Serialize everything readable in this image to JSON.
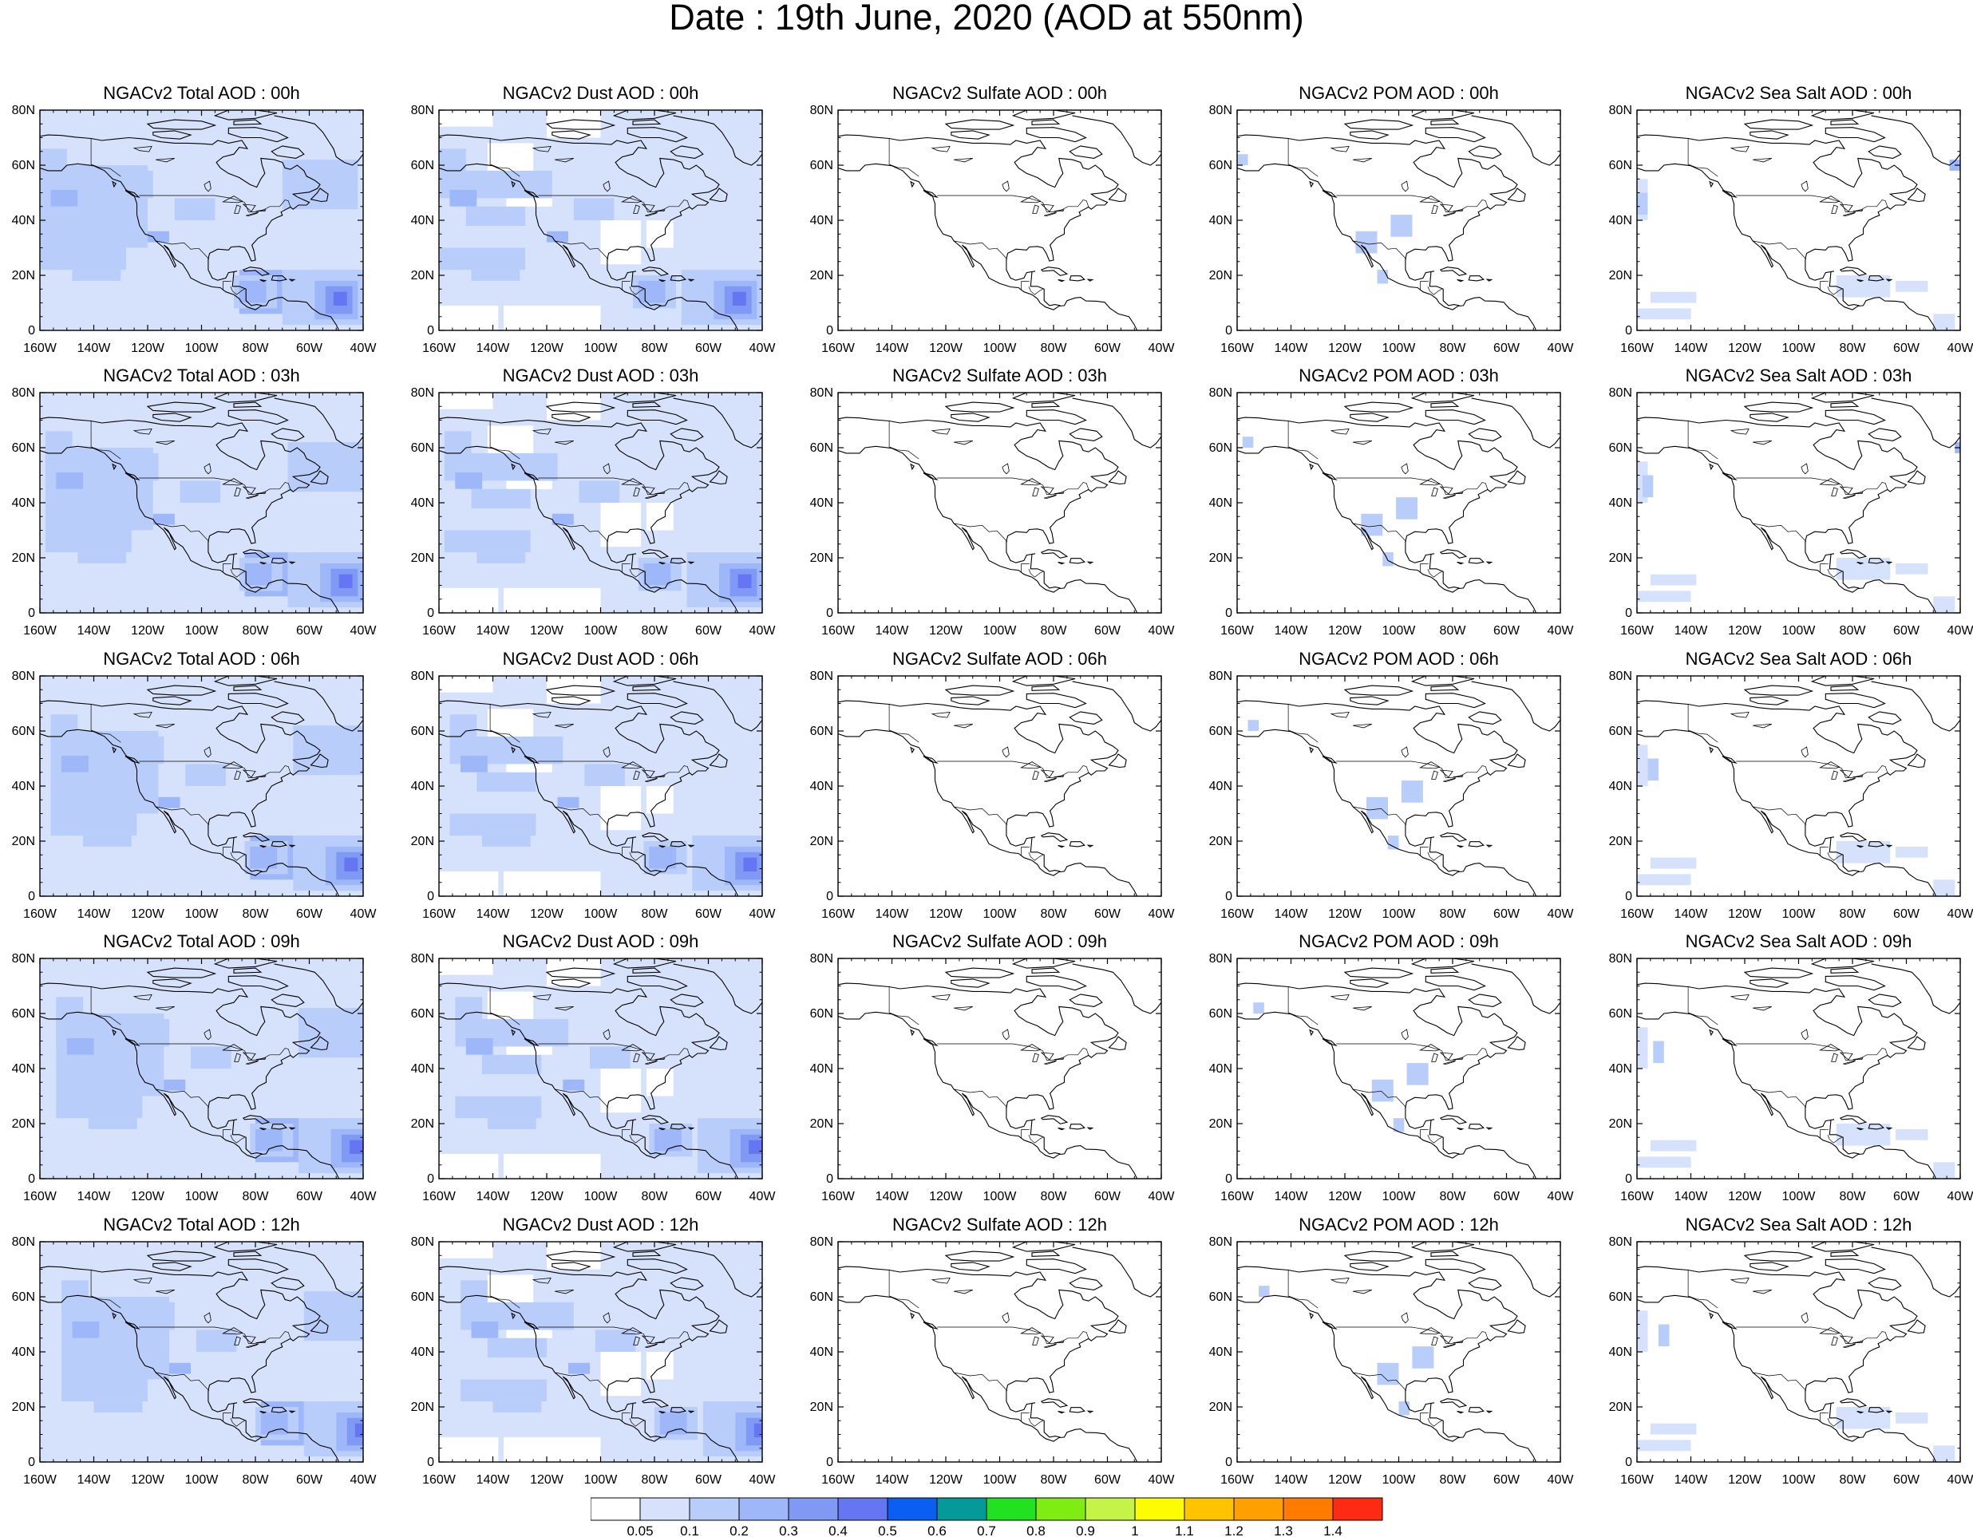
{
  "title": "Date : 19th June, 2020 (AOD at 550nm)",
  "panel_titles": [
    [
      "NGACv2 Total AOD : 00h",
      "NGACv2 Dust AOD : 00h",
      "NGACv2 Sulfate AOD : 00h",
      "NGACv2 POM AOD : 00h",
      "NGACv2 Sea Salt AOD : 00h"
    ],
    [
      "NGACv2 Total AOD : 03h",
      "NGACv2 Dust AOD : 03h",
      "NGACv2 Sulfate AOD : 03h",
      "NGACv2 POM AOD : 03h",
      "NGACv2 Sea Salt AOD : 03h"
    ],
    [
      "NGACv2 Total AOD : 06h",
      "NGACv2 Dust AOD : 06h",
      "NGACv2 Sulfate AOD : 06h",
      "NGACv2 POM AOD : 06h",
      "NGACv2 Sea Salt AOD : 06h"
    ],
    [
      "NGACv2 Total AOD : 09h",
      "NGACv2 Dust AOD : 09h",
      "NGACv2 Sulfate AOD : 09h",
      "NGACv2 POM AOD : 09h",
      "NGACv2 Sea Salt  AOD : 09h"
    ],
    [
      "NGACv2 Total AOD  : 12h",
      "NGACv2 Dust AOD : 12h",
      "NGACv2 Sulfate AOD : 12h",
      "NGACv2 POM  AOD : 12h",
      "NGACv2 Sea Salt  AOD : 12h"
    ]
  ],
  "lat_ticks": [
    "80N",
    "60N",
    "40N",
    "20N",
    "0"
  ],
  "lon_ticks": [
    "160W",
    "140W",
    "120W",
    "100W",
    "80W",
    "60W",
    "40W"
  ],
  "colorbar": {
    "colors": [
      "#ffffff",
      "#d6e2fb",
      "#b9cdfa",
      "#9db7f9",
      "#7f99f5",
      "#6675f1",
      "#0a5ff2",
      "#059999",
      "#21e121",
      "#7fec12",
      "#c5f347",
      "#fdfd00",
      "#ffc400",
      "#ffa000",
      "#ff7c00",
      "#ff2a14"
    ],
    "labels": [
      "0.05",
      "0.1",
      "0.2",
      "0.3",
      "0.4",
      "0.5",
      "0.6",
      "0.7",
      "0.8",
      "0.9",
      "1",
      "1.1",
      "1.2",
      "1.3",
      "1.4"
    ]
  }
}
